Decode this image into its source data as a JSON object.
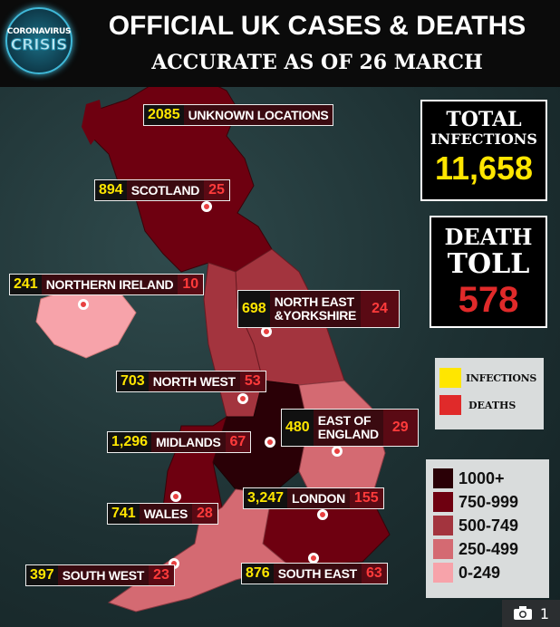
{
  "header": {
    "logo_top": "CORONAVIRUS",
    "logo_bottom": "CRISIS",
    "title": "OFFICIAL UK CASES & DEATHS",
    "subtitle": "ACCURATE AS OF 26 MARCH"
  },
  "totals": {
    "infections_label_1": "TOTAL",
    "infections_label_2": "INFECTIONS",
    "infections": "11,658",
    "death_label_1": "DEATH",
    "death_label_2": "TOLL",
    "deaths": "578"
  },
  "regions": [
    {
      "name": "UNKNOWN LOCATIONS",
      "cases": "2085",
      "deaths": ""
    },
    {
      "name": "SCOTLAND",
      "cases": "894",
      "deaths": "25"
    },
    {
      "name": "NORTHERN IRELAND",
      "cases": "241",
      "deaths": "10"
    },
    {
      "name_line1": "NORTH EAST",
      "name_line2": "&YORKSHIRE",
      "cases": "698",
      "deaths": "24"
    },
    {
      "name": "NORTH WEST",
      "cases": "703",
      "deaths": "53"
    },
    {
      "name_line1": "EAST OF",
      "name_line2": "ENGLAND",
      "cases": "480",
      "deaths": "29"
    },
    {
      "name": "MIDLANDS",
      "cases": "1,296",
      "deaths": "67"
    },
    {
      "name": "LONDON",
      "cases": "3,247",
      "deaths": "155"
    },
    {
      "name": "WALES",
      "cases": "741",
      "deaths": "28"
    },
    {
      "name": "SOUTH WEST",
      "cases": "397",
      "deaths": "23"
    },
    {
      "name": "SOUTH EAST",
      "cases": "876",
      "deaths": "63"
    }
  ],
  "legend": {
    "infections": "INFECTIONS",
    "deaths": "DEATHS",
    "infections_color": "#ffe600",
    "deaths_color": "#e02a2a"
  },
  "scale": [
    {
      "label": "1000+",
      "color": "#2a0006"
    },
    {
      "label": "750-999",
      "color": "#6e0010"
    },
    {
      "label": "500-749",
      "color": "#a3343e"
    },
    {
      "label": "250-499",
      "color": "#d46a72"
    },
    {
      "label": "0-249",
      "color": "#f7a3aa"
    }
  ],
  "gallery": {
    "icon": "camera-icon",
    "count": "1"
  }
}
